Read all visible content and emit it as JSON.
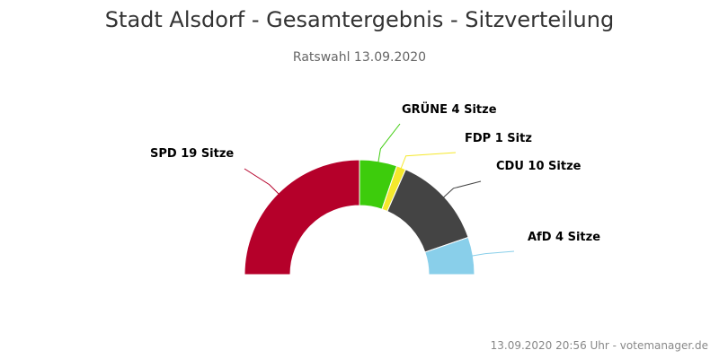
{
  "chart_data": {
    "type": "pie",
    "variant": "semi-donut",
    "title": "Stadt Alsdorf - Gesamtergebnis - Sitzverteilung",
    "subtitle": "Ratswahl 13.09.2020",
    "credits": "13.09.2020 20:56 Uhr - votemanager.de",
    "slices": [
      {
        "name": "SPD",
        "value": 19,
        "label": "SPD 19 Sitze",
        "color": "#b5002a"
      },
      {
        "name": "GRÜNE",
        "value": 4,
        "label": "GRÜNE 4 Sitze",
        "color": "#3dcc0c"
      },
      {
        "name": "FDP",
        "value": 1,
        "label": "FDP 1 Sitz",
        "color": "#f5e82c"
      },
      {
        "name": "CDU",
        "value": 10,
        "label": "CDU 10 Sitze",
        "color": "#444444"
      },
      {
        "name": "AfD",
        "value": 4,
        "label": "AfD 4 Sitze",
        "color": "#89cfea"
      }
    ]
  }
}
